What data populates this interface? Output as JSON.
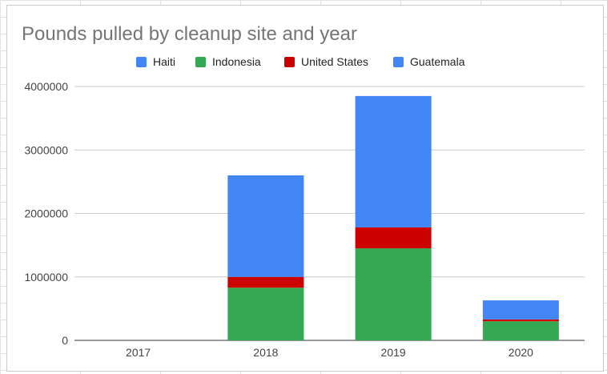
{
  "chart_data": {
    "type": "bar",
    "stacked": true,
    "title": "Pounds pulled by cleanup site and year",
    "xlabel": "",
    "ylabel": "",
    "categories": [
      "2017",
      "2018",
      "2019",
      "2020"
    ],
    "series": [
      {
        "name": "Haiti",
        "color": "#4285f4",
        "values": [
          0,
          0,
          0,
          0
        ]
      },
      {
        "name": "Indonesia",
        "color": "#34a853",
        "values": [
          0,
          830000,
          1450000,
          300000
        ]
      },
      {
        "name": "United States",
        "color": "#cc0000",
        "values": [
          0,
          170000,
          330000,
          30000
        ]
      },
      {
        "name": "Guatemala",
        "color": "#4285f4",
        "values": [
          0,
          1600000,
          2070000,
          300000
        ]
      }
    ],
    "ylim": [
      0,
      4000000
    ],
    "yticks": [
      "0",
      "1000000",
      "2000000",
      "3000000",
      "4000000"
    ],
    "grid": true,
    "legend_position": "top"
  }
}
